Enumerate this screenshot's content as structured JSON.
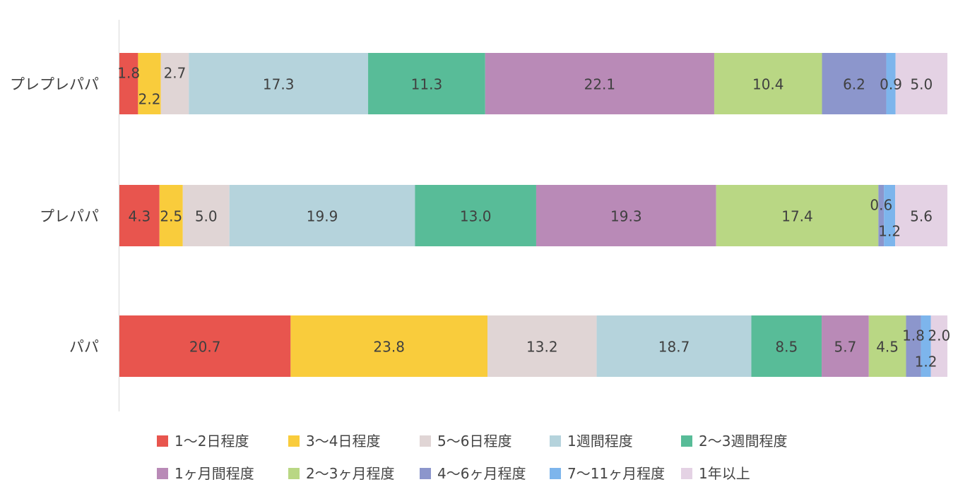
{
  "chart_data": {
    "type": "bar",
    "orientation": "horizontal",
    "stacked": true,
    "stack_mode": "percent",
    "title": "",
    "xlabel": "",
    "ylabel": "",
    "xlim": [
      0,
      100
    ],
    "grid": false,
    "legend_position": "bottom",
    "categories": [
      "プレプレパパ",
      "プレパパ",
      "パパ"
    ],
    "series": [
      {
        "name": "1〜2日程度",
        "color": "#E8554E",
        "values": [
          1.8,
          4.3,
          20.7
        ],
        "labels": [
          "1.8",
          "4.3",
          "20.7"
        ]
      },
      {
        "name": "3〜4日程度",
        "color": "#F9CC3C",
        "values": [
          2.2,
          2.5,
          23.8
        ],
        "labels": [
          "2.2",
          "2.5",
          "23.8"
        ]
      },
      {
        "name": "5〜6日程度",
        "color": "#E0D5D5",
        "values": [
          2.7,
          5.0,
          13.2
        ],
        "labels": [
          "2.7",
          "5.0",
          "13.2"
        ]
      },
      {
        "name": "1週間程度",
        "color": "#B5D3DC",
        "values": [
          17.3,
          19.9,
          18.7
        ],
        "labels": [
          "17.3",
          "19.9",
          "18.7"
        ]
      },
      {
        "name": "2〜3週間程度",
        "color": "#58BC98",
        "values": [
          11.3,
          13.0,
          8.5
        ],
        "labels": [
          "11.3",
          "13.0",
          "8.5"
        ]
      },
      {
        "name": "1ヶ月間程度",
        "color": "#B98AB7",
        "values": [
          22.1,
          19.3,
          5.7
        ],
        "labels": [
          "22.1",
          "19.3",
          "5.7"
        ]
      },
      {
        "name": "2〜3ヶ月程度",
        "color": "#B9D784",
        "values": [
          10.4,
          17.4,
          4.5
        ],
        "labels": [
          "10.4",
          "17.4",
          "4.5"
        ]
      },
      {
        "name": "4〜6ヶ月程度",
        "color": "#8C96CC",
        "values": [
          6.2,
          0.6,
          1.8
        ],
        "labels": [
          "6.2",
          "0.6",
          "1.8"
        ]
      },
      {
        "name": "7〜11ヶ月程度",
        "color": "#7DB5EC",
        "values": [
          0.9,
          1.2,
          1.2
        ],
        "labels": [
          "0.9",
          "1.2",
          "1.2"
        ]
      },
      {
        "name": "1年以上",
        "color": "#E4D2E4",
        "values": [
          5.0,
          5.6,
          2.0
        ],
        "labels": [
          "5.0",
          "5.6",
          "2.0"
        ]
      }
    ],
    "colors": {
      "axis_line": "#D9D9D9",
      "label_text": "#404040",
      "category_text": "#404040",
      "legend_text": "#444444"
    }
  }
}
